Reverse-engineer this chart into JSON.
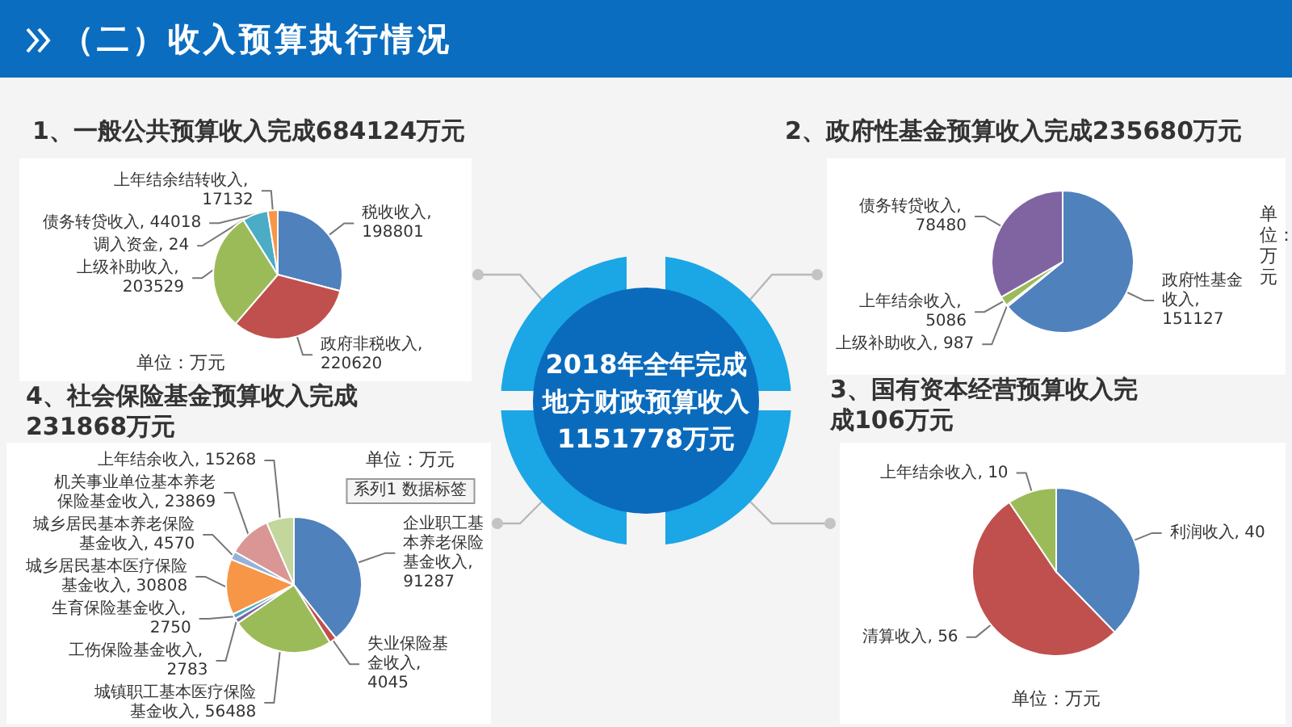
{
  "chart_data": [
    {
      "type": "other",
      "title": "（二）收入预算执行情况"
    },
    {
      "type": "pie",
      "title": "1、一般公共预算收入完成684124万元",
      "categories": [
        null,
        null,
        null,
        null,
        null,
        null
      ],
      "values": [
        198801,
        220620,
        203529,
        24,
        44018,
        17132
      ],
      "colors": [
        "#4f81bd",
        "#c0504d",
        "#9bbb59",
        "#8064a2",
        "#4bacc6",
        "#f79646"
      ],
      "value_labels": [
        "税收收入, 198801",
        "政府非税收入, 220620",
        "上级补助收入, 203529",
        "调入资金, 24",
        "债务转贷收入, 44018",
        "上年结余结转收入, 17132"
      ],
      "annotations": [
        "单位：万元"
      ]
    },
    {
      "type": "pie",
      "title": "2、政府性基金预算收入完成235680万元",
      "categories": [
        null,
        null,
        null,
        null
      ],
      "values": [
        151127,
        987,
        5086,
        78480
      ],
      "colors": [
        "#4f81bd",
        "#c0504d",
        "#9bbb59",
        "#8064a2"
      ],
      "value_labels": [
        "政府性基金收入, 151127",
        "上级补助收入, 987",
        "上年结余收入, 5086",
        "债务转贷收入, 78480"
      ],
      "annotations": [
        "单位：万元"
      ]
    },
    {
      "type": "other",
      "annotations": [
        "2018年全年完成",
        "地方财政预算收入",
        "1151778万元"
      ]
    },
    {
      "type": "pie",
      "title": "4、社会保险基金预算收入完成231868万元",
      "categories": [
        null,
        null,
        null,
        null,
        null,
        null,
        null,
        null,
        null
      ],
      "values": [
        91287,
        4045,
        56488,
        2783,
        2750,
        30808,
        4570,
        23869,
        15268
      ],
      "colors": [
        "#4f81bd",
        "#c0504d",
        "#9bbb59",
        "#8064a2",
        "#4bacc6",
        "#f79646",
        "#95b3d7",
        "#d99694",
        "#c3d69b"
      ],
      "value_labels": [
        "企业职工基本养老保险基金收入, 91287",
        "失业保险基金收入, 4045",
        "城镇职工基本医疗保险基金收入, 56488",
        "工伤保险基金收入, 2783",
        "生育保险基金收入, 2750",
        "城乡居民基本医疗保险基金收入, 30808",
        "城乡居民基本养老保险基金收入, 4570",
        "机关事业单位基本养老保险基金收入, 23869",
        "上年结余收入, 15268"
      ],
      "annotations": [
        "单位：万元",
        "系列1 数据标签"
      ]
    },
    {
      "type": "pie",
      "title": "3、国有资本经营预算收入完成106万元",
      "categories": [
        null,
        null,
        null
      ],
      "values": [
        40,
        56,
        10
      ],
      "colors": [
        "#4f81bd",
        "#c0504d",
        "#9bbb59"
      ],
      "value_labels": [
        "利润收入, 40",
        "清算收入, 56",
        "上年结余收入, 10"
      ],
      "annotations": [
        "单位：万元"
      ]
    }
  ]
}
